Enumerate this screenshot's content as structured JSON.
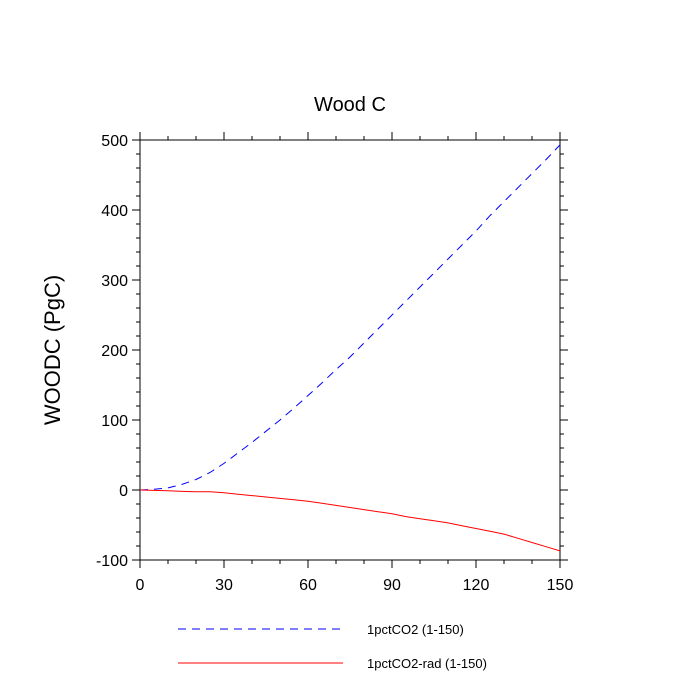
{
  "chart_data": {
    "type": "line",
    "title": "Wood C",
    "xlabel": "",
    "ylabel": "WOODC  (PgC)",
    "xlim": [
      0,
      150
    ],
    "ylim": [
      -100,
      500
    ],
    "x_ticks": [
      0,
      30,
      60,
      90,
      120,
      150
    ],
    "y_ticks": [
      -100,
      0,
      100,
      200,
      300,
      400,
      500
    ],
    "x_tick_labels": [
      "0",
      "30",
      "60",
      "90",
      "120",
      "150"
    ],
    "y_tick_labels": [
      "-100",
      "0",
      "100",
      "200",
      "300",
      "400",
      "500"
    ],
    "grid": false,
    "legend_position": "bottom",
    "series": [
      {
        "name": "1pctCO2 (1-150)",
        "color": "#0000ff",
        "dash": "dashed",
        "x": [
          0,
          5,
          10,
          15,
          20,
          25,
          30,
          35,
          40,
          45,
          50,
          55,
          60,
          65,
          70,
          75,
          80,
          85,
          90,
          95,
          100,
          105,
          110,
          115,
          120,
          125,
          130,
          135,
          140,
          145,
          150
        ],
        "y": [
          0,
          1,
          3,
          8,
          15,
          25,
          38,
          53,
          68,
          84,
          100,
          117,
          135,
          153,
          172,
          190,
          210,
          230,
          250,
          270,
          290,
          310,
          330,
          350,
          370,
          392,
          412,
          432,
          452,
          472,
          493
        ]
      },
      {
        "name": "1pctCO2-rad (1-150)",
        "color": "#ff0000",
        "dash": "solid",
        "x": [
          0,
          5,
          10,
          15,
          20,
          25,
          30,
          35,
          40,
          45,
          50,
          55,
          60,
          65,
          70,
          75,
          80,
          85,
          90,
          95,
          100,
          105,
          110,
          115,
          120,
          125,
          130,
          135,
          140,
          145,
          150
        ],
        "y": [
          0,
          -0.5,
          -1,
          -2,
          -2.5,
          -2.5,
          -4,
          -6,
          -8,
          -10,
          -12,
          -14,
          -16,
          -19,
          -22,
          -25,
          -28,
          -31,
          -34,
          -38,
          -41,
          -44,
          -47,
          -51,
          -55,
          -59,
          -63,
          -69,
          -75,
          -81,
          -87
        ]
      }
    ]
  }
}
